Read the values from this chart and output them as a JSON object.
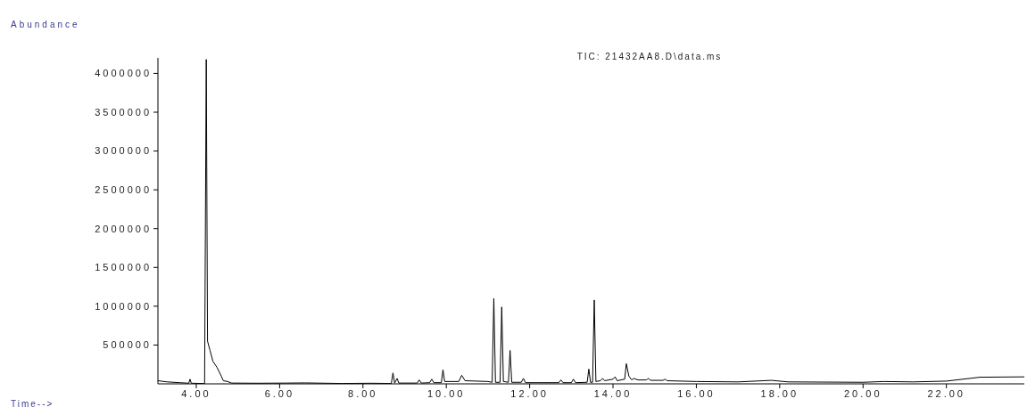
{
  "chart_data": {
    "type": "line",
    "title": "TIC: 21432AA8.D\\data.ms",
    "xlabel": "Time-->",
    "ylabel": "Abundance",
    "xlim": [
      3.08,
      23.87
    ],
    "xticks": [
      {
        "value": 4,
        "label": "4.00"
      },
      {
        "value": 6,
        "label": "6.00"
      },
      {
        "value": 8,
        "label": "8.00"
      },
      {
        "value": 10,
        "label": "10.00"
      },
      {
        "value": 12,
        "label": "12.00"
      },
      {
        "value": 14,
        "label": "14.00"
      },
      {
        "value": 16,
        "label": "16.00"
      },
      {
        "value": 18,
        "label": "18.00"
      },
      {
        "value": 20,
        "label": "20.00"
      },
      {
        "value": 22,
        "label": "22.00"
      }
    ],
    "ylim": [
      0,
      4200000
    ],
    "yticks": [
      500000,
      1000000,
      1500000,
      2000000,
      2500000,
      3000000,
      3500000,
      4000000
    ],
    "grid": false,
    "legend": false,
    "marker": "none",
    "line_style": "solid",
    "series": [
      {
        "color": "#000000",
        "x": [
          3.08,
          3.3,
          3.6,
          3.82,
          3.85,
          3.88,
          4.15,
          4.2,
          4.24,
          4.27,
          4.33,
          4.4,
          4.5,
          4.6,
          4.65,
          4.75,
          4.85,
          5.5,
          6.2,
          6.6,
          7.5,
          8.2,
          8.68,
          8.72,
          8.76,
          8.82,
          8.86,
          9.3,
          9.35,
          9.4,
          9.6,
          9.65,
          9.7,
          9.88,
          9.92,
          9.96,
          10.3,
          10.37,
          10.45,
          11.0,
          11.1,
          11.14,
          11.18,
          11.29,
          11.33,
          11.37,
          11.49,
          11.53,
          11.57,
          11.8,
          11.85,
          11.9,
          12.2,
          12.7,
          12.75,
          12.8,
          13.0,
          13.05,
          13.1,
          13.38,
          13.42,
          13.46,
          13.51,
          13.55,
          13.59,
          13.7,
          13.75,
          13.8,
          14.0,
          14.05,
          14.1,
          14.28,
          14.32,
          14.38,
          14.45,
          14.5,
          14.6,
          14.8,
          14.85,
          14.9,
          15.2,
          15.25,
          15.3,
          16.0,
          17.0,
          17.8,
          18.2,
          20.0,
          20.5,
          21.2,
          22.0,
          22.8,
          23.87
        ],
        "values": [
          40000,
          25000,
          15000,
          8000,
          60000,
          8000,
          5000,
          5000,
          4180000,
          550000,
          430000,
          290000,
          210000,
          100000,
          40000,
          30000,
          10000,
          8000,
          10000,
          12000,
          5000,
          8000,
          5000,
          140000,
          10000,
          70000,
          10000,
          10000,
          50000,
          10000,
          15000,
          60000,
          15000,
          15000,
          180000,
          30000,
          30000,
          110000,
          40000,
          30000,
          20000,
          1100000,
          20000,
          20000,
          990000,
          30000,
          20000,
          430000,
          20000,
          20000,
          70000,
          15000,
          15000,
          15000,
          50000,
          15000,
          15000,
          60000,
          15000,
          20000,
          190000,
          20000,
          20000,
          1080000,
          30000,
          40000,
          70000,
          40000,
          60000,
          90000,
          40000,
          60000,
          260000,
          100000,
          50000,
          70000,
          50000,
          50000,
          70000,
          45000,
          45000,
          60000,
          40000,
          30000,
          25000,
          45000,
          25000,
          20000,
          30000,
          25000,
          35000,
          85000,
          90000
        ]
      }
    ]
  }
}
